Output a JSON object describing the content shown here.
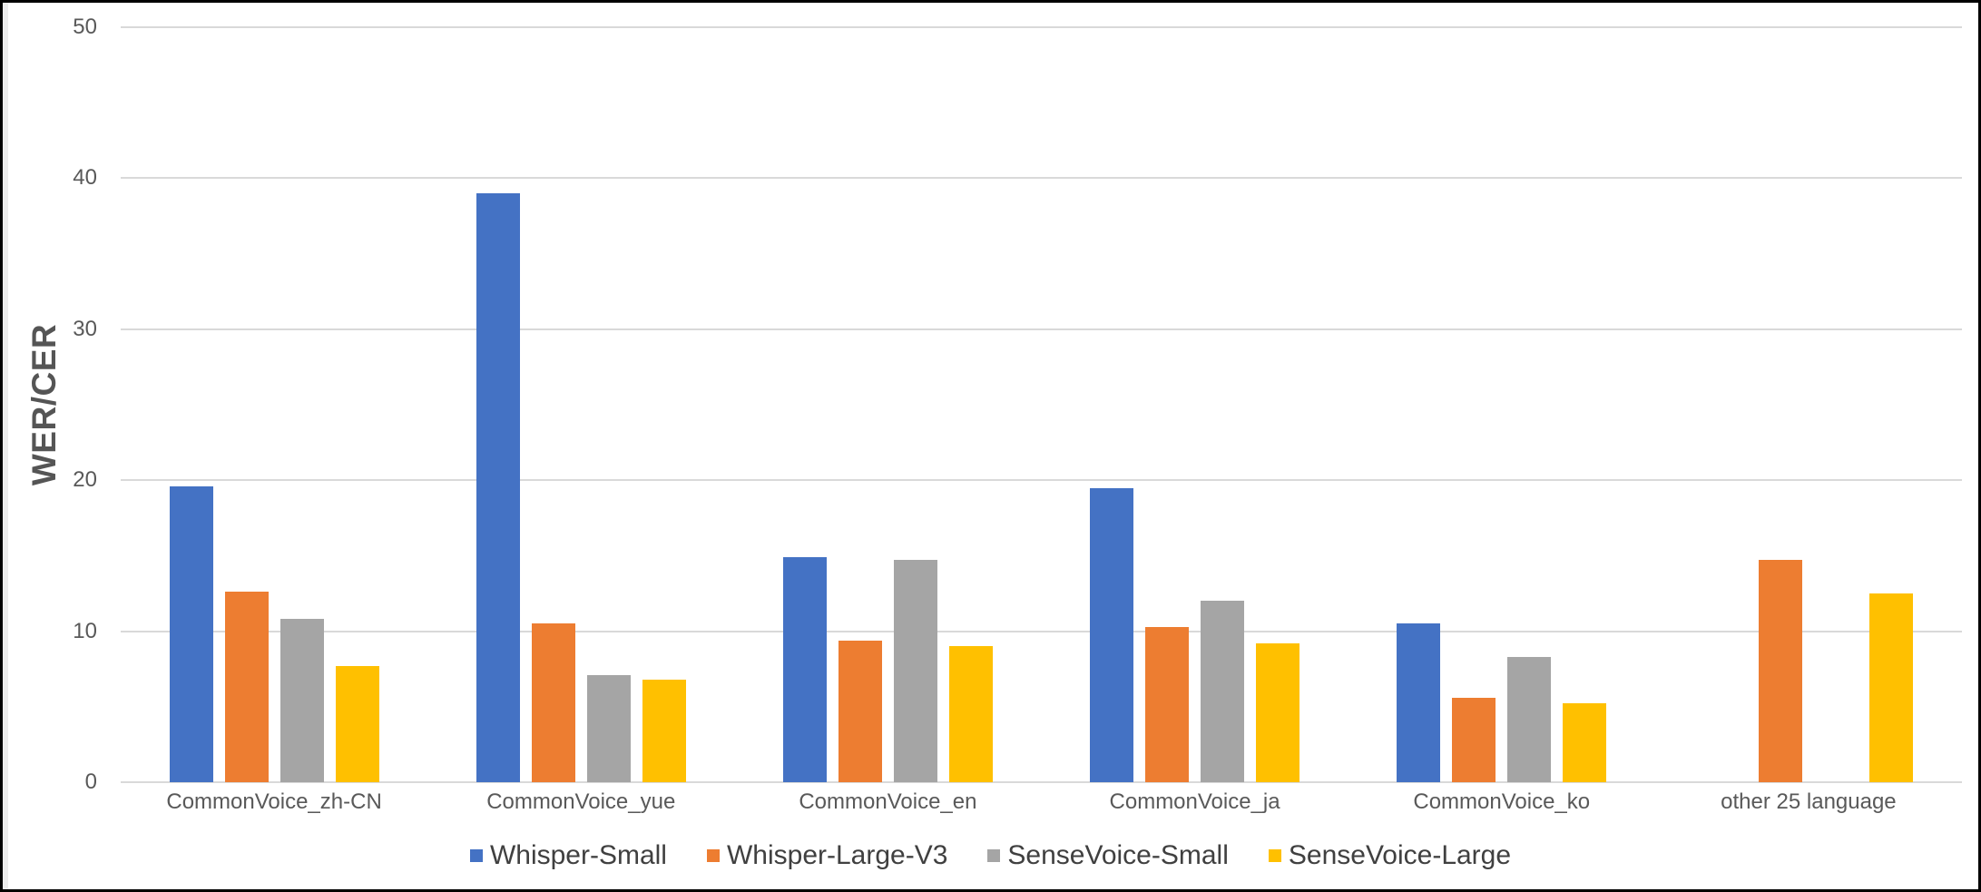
{
  "chart_data": {
    "type": "bar",
    "title": "",
    "xlabel": "",
    "ylabel": "WER/CER",
    "ylim": [
      0,
      50
    ],
    "yticks": [
      0,
      10,
      20,
      30,
      40,
      50
    ],
    "grid": true,
    "legend_position": "bottom",
    "categories": [
      "CommonVoice_zh-CN",
      "CommonVoice_yue",
      "CommonVoice_en",
      "CommonVoice_ja",
      "CommonVoice_ko",
      "other 25 language"
    ],
    "series": [
      {
        "name": "Whisper-Small",
        "color": "#4472C4",
        "values": [
          19.6,
          39.0,
          14.9,
          19.5,
          10.5,
          null
        ]
      },
      {
        "name": "Whisper-Large-V3",
        "color": "#ED7D31",
        "values": [
          12.6,
          10.5,
          9.4,
          10.3,
          5.6,
          14.7
        ]
      },
      {
        "name": "SenseVoice-Small",
        "color": "#A5A5A5",
        "values": [
          10.8,
          7.1,
          14.7,
          12.0,
          8.3,
          null
        ]
      },
      {
        "name": "SenseVoice-Large",
        "color": "#FFC000",
        "values": [
          7.7,
          6.8,
          9.0,
          9.2,
          5.2,
          12.5
        ]
      }
    ]
  }
}
